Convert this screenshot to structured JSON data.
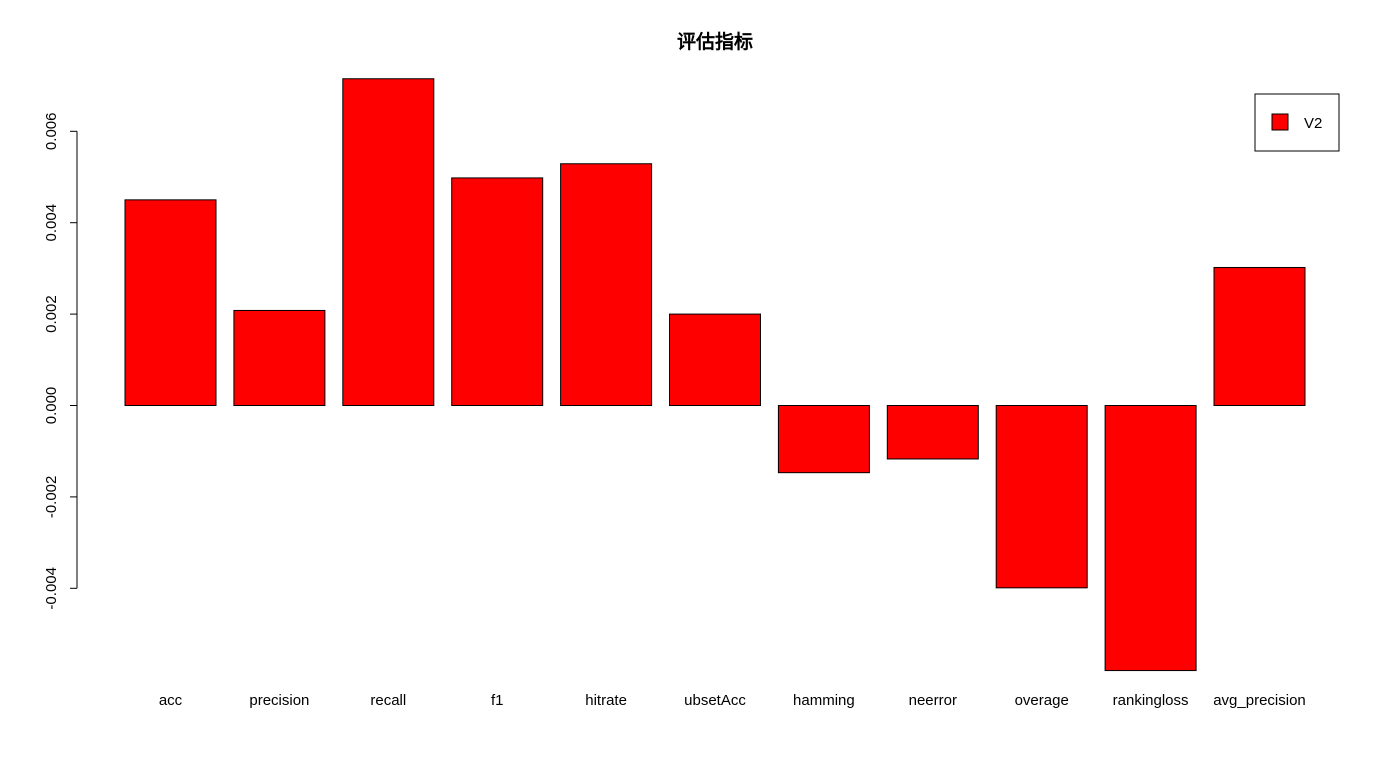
{
  "chart_data": {
    "type": "bar",
    "title": "评估指标",
    "xlabel": "",
    "ylabel": "",
    "categories": [
      "acc",
      "precision",
      "recall",
      "f1",
      "hitrate",
      "ubsetAcc",
      "hamming",
      "neerror",
      "overage",
      "rankingloss",
      "avg_precision"
    ],
    "series": [
      {
        "name": "V2",
        "color": "#ff0000",
        "values": [
          0.0045,
          0.00208,
          0.00715,
          0.00498,
          0.00529,
          0.002,
          -0.00147,
          -0.00117,
          -0.00399,
          -0.0058,
          0.00302
        ]
      }
    ],
    "yticks": [
      "0.006",
      "0.004",
      "0.002",
      "0.000",
      "-0.002",
      "-0.004"
    ],
    "ylim": [
      -0.0058,
      0.00715
    ],
    "legend_position": "top-right",
    "grid": false
  }
}
